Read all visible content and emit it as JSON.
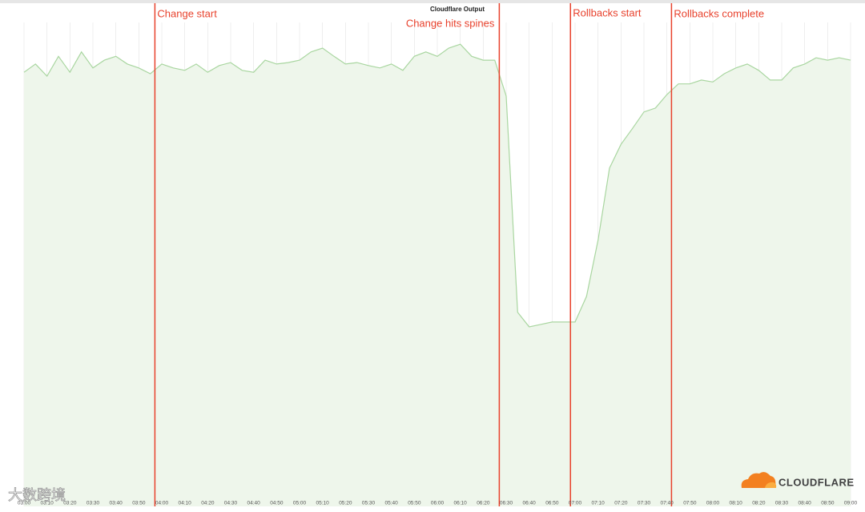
{
  "chart_data": {
    "type": "area",
    "title": "Cloudflare Output",
    "x": [
      "03:00",
      "03:05",
      "03:10",
      "03:15",
      "03:20",
      "03:25",
      "03:30",
      "03:35",
      "03:40",
      "03:45",
      "03:50",
      "03:55",
      "04:00",
      "04:05",
      "04:10",
      "04:15",
      "04:20",
      "04:25",
      "04:30",
      "04:35",
      "04:40",
      "04:45",
      "04:50",
      "04:55",
      "05:00",
      "05:05",
      "05:10",
      "05:15",
      "05:20",
      "05:25",
      "05:30",
      "05:35",
      "05:40",
      "05:45",
      "05:50",
      "05:55",
      "06:00",
      "06:05",
      "06:10",
      "06:15",
      "06:20",
      "06:25",
      "06:30",
      "06:35",
      "06:40",
      "06:45",
      "06:50",
      "06:55",
      "07:00",
      "07:05",
      "07:10",
      "07:15",
      "07:20",
      "07:25",
      "07:30",
      "07:35",
      "07:40",
      "07:45",
      "07:50",
      "07:55",
      "08:00",
      "08:05",
      "08:10",
      "08:15",
      "08:20",
      "08:25",
      "08:30",
      "08:35",
      "08:40",
      "08:45",
      "08:50",
      "08:55",
      "09:00"
    ],
    "values": [
      89.7,
      91.4,
      88.9,
      93.0,
      89.7,
      93.9,
      90.6,
      92.2,
      93.0,
      91.4,
      90.6,
      89.4,
      91.4,
      90.6,
      90.1,
      91.4,
      89.7,
      91.1,
      91.7,
      90.1,
      89.7,
      92.2,
      91.4,
      91.7,
      92.2,
      93.9,
      94.7,
      93.0,
      91.4,
      91.7,
      91.1,
      90.6,
      91.4,
      90.1,
      93.0,
      93.9,
      93.0,
      94.7,
      95.5,
      93.0,
      92.2,
      92.2,
      84.8,
      40.1,
      37.1,
      37.6,
      38.1,
      38.1,
      38.1,
      43.4,
      55.0,
      69.9,
      74.8,
      78.1,
      81.5,
      82.3,
      85.1,
      87.3,
      87.3,
      88.1,
      87.7,
      89.4,
      90.6,
      91.4,
      90.1,
      88.1,
      88.1,
      90.6,
      91.4,
      92.7,
      92.2,
      92.7,
      92.2
    ],
    "color": "#a9d6a0",
    "fill": "#eef6eb",
    "xlim": [
      "03:00",
      "09:00"
    ],
    "ylim": [
      0,
      100
    ],
    "xticks": [
      "03:00",
      "03:10",
      "03:20",
      "03:30",
      "03:40",
      "03:50",
      "04:00",
      "04:10",
      "04:20",
      "04:30",
      "04:40",
      "04:50",
      "05:00",
      "05:10",
      "05:20",
      "05:30",
      "05:40",
      "05:50",
      "06:00",
      "06:10",
      "06:20",
      "06:30",
      "06:40",
      "06:50",
      "07:00",
      "07:10",
      "07:20",
      "07:30",
      "07:40",
      "07:50",
      "08:00",
      "08:10",
      "08:20",
      "08:30",
      "08:40",
      "08:50",
      "09:00"
    ],
    "grid": true,
    "annotations": [
      {
        "text": "Change start",
        "x": "03:57"
      },
      {
        "text": "Change hits spines",
        "x": "06:27"
      },
      {
        "text": "Rollbacks start",
        "x": "06:58"
      },
      {
        "text": "Rollbacks complete",
        "x": "07:42"
      }
    ],
    "annotation_color": "#e8412c",
    "brand": "CLOUDFLARE",
    "watermark": "大数跨境"
  }
}
